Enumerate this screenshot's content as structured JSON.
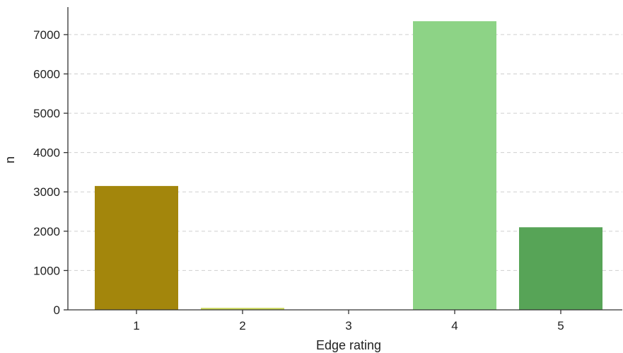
{
  "chart_data": {
    "type": "bar",
    "xlabel": "Edge rating",
    "ylabel": "n",
    "categories": [
      "1",
      "2",
      "3",
      "4",
      "5"
    ],
    "values": [
      3150,
      50,
      0,
      7340,
      2100
    ],
    "bar_colors": [
      "#a3860c",
      "#c9d65a",
      "#e3e9a0",
      "#8dd386",
      "#57a457"
    ],
    "ylim": [
      0,
      7700
    ],
    "yticks": [
      0,
      1000,
      2000,
      3000,
      4000,
      5000,
      6000,
      7000
    ],
    "ytick_labels": [
      "0",
      "1000",
      "2000",
      "3000",
      "4000",
      "5000",
      "6000",
      "7000"
    ],
    "grid": "horizontal dashed",
    "legend": "none"
  }
}
